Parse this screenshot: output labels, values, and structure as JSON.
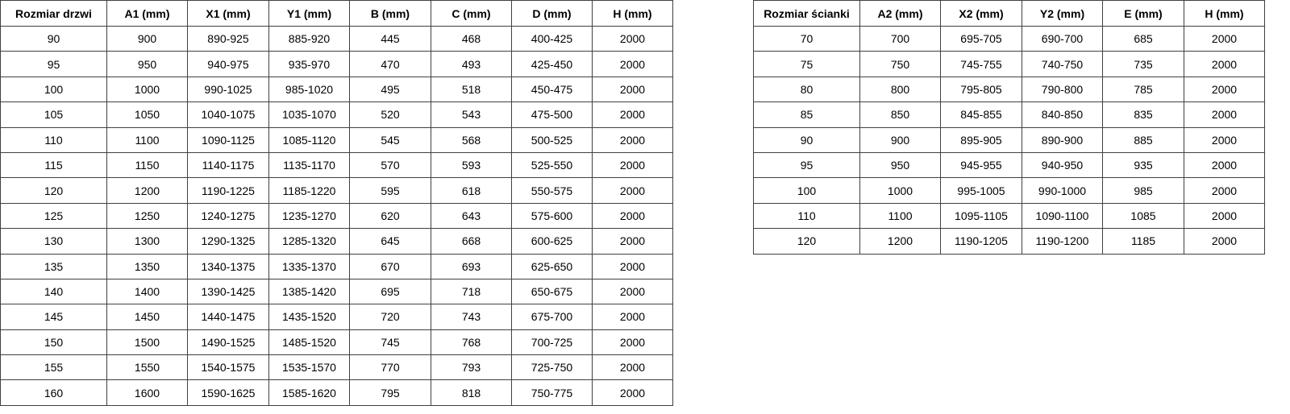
{
  "door_table": {
    "headers": [
      "Rozmiar drzwi",
      "A1 (mm)",
      "X1 (mm)",
      "Y1 (mm)",
      "B (mm)",
      "C (mm)",
      "D (mm)",
      "H (mm)"
    ],
    "rows": [
      [
        "90",
        "900",
        "890-925",
        "885-920",
        "445",
        "468",
        "400-425",
        "2000"
      ],
      [
        "95",
        "950",
        "940-975",
        "935-970",
        "470",
        "493",
        "425-450",
        "2000"
      ],
      [
        "100",
        "1000",
        "990-1025",
        "985-1020",
        "495",
        "518",
        "450-475",
        "2000"
      ],
      [
        "105",
        "1050",
        "1040-1075",
        "1035-1070",
        "520",
        "543",
        "475-500",
        "2000"
      ],
      [
        "110",
        "1100",
        "1090-1125",
        "1085-1120",
        "545",
        "568",
        "500-525",
        "2000"
      ],
      [
        "115",
        "1150",
        "1140-1175",
        "1135-1170",
        "570",
        "593",
        "525-550",
        "2000"
      ],
      [
        "120",
        "1200",
        "1190-1225",
        "1185-1220",
        "595",
        "618",
        "550-575",
        "2000"
      ],
      [
        "125",
        "1250",
        "1240-1275",
        "1235-1270",
        "620",
        "643",
        "575-600",
        "2000"
      ],
      [
        "130",
        "1300",
        "1290-1325",
        "1285-1320",
        "645",
        "668",
        "600-625",
        "2000"
      ],
      [
        "135",
        "1350",
        "1340-1375",
        "1335-1370",
        "670",
        "693",
        "625-650",
        "2000"
      ],
      [
        "140",
        "1400",
        "1390-1425",
        "1385-1420",
        "695",
        "718",
        "650-675",
        "2000"
      ],
      [
        "145",
        "1450",
        "1440-1475",
        "1435-1520",
        "720",
        "743",
        "675-700",
        "2000"
      ],
      [
        "150",
        "1500",
        "1490-1525",
        "1485-1520",
        "745",
        "768",
        "700-725",
        "2000"
      ],
      [
        "155",
        "1550",
        "1540-1575",
        "1535-1570",
        "770",
        "793",
        "725-750",
        "2000"
      ],
      [
        "160",
        "1600",
        "1590-1625",
        "1585-1620",
        "795",
        "818",
        "750-775",
        "2000"
      ]
    ]
  },
  "wall_table": {
    "headers": [
      "Rozmiar ścianki",
      "A2 (mm)",
      "X2 (mm)",
      "Y2 (mm)",
      "E (mm)",
      "H (mm)"
    ],
    "rows": [
      [
        "70",
        "700",
        "695-705",
        "690-700",
        "685",
        "2000"
      ],
      [
        "75",
        "750",
        "745-755",
        "740-750",
        "735",
        "2000"
      ],
      [
        "80",
        "800",
        "795-805",
        "790-800",
        "785",
        "2000"
      ],
      [
        "85",
        "850",
        "845-855",
        "840-850",
        "835",
        "2000"
      ],
      [
        "90",
        "900",
        "895-905",
        "890-900",
        "885",
        "2000"
      ],
      [
        "95",
        "950",
        "945-955",
        "940-950",
        "935",
        "2000"
      ],
      [
        "100",
        "1000",
        "995-1005",
        "990-1000",
        "985",
        "2000"
      ],
      [
        "110",
        "1100",
        "1095-1105",
        "1090-1100",
        "1085",
        "2000"
      ],
      [
        "120",
        "1200",
        "1190-1205",
        "1190-1200",
        "1185",
        "2000"
      ]
    ]
  }
}
